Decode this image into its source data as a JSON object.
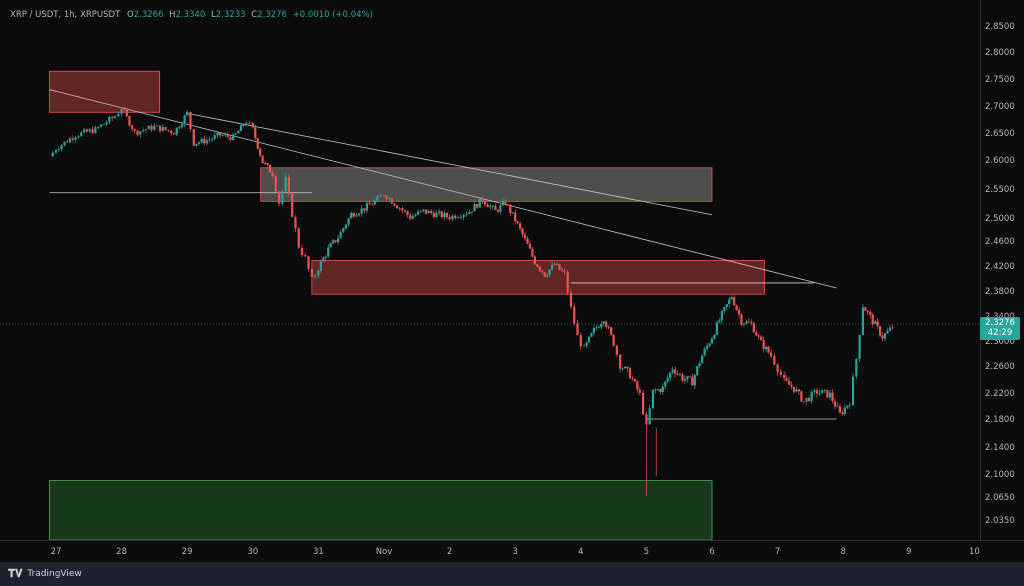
{
  "header": {
    "symbol": "XRP / USDT, 1h, XRPUSDT",
    "o_label": "O",
    "o_value": "2.3266",
    "h_label": "H",
    "h_value": "2.3340",
    "l_label": "L",
    "l_value": "2.3233",
    "c_label": "C",
    "c_value": "2.3276",
    "change": "+0.0010 (+0.04%)"
  },
  "last_price": {
    "price": "2.3276",
    "countdown": "42:29"
  },
  "footer": {
    "brand": "TradingView"
  },
  "colors": {
    "up": "#26a69a",
    "down": "#ef5350",
    "resistance_zone": "#ef5350",
    "support_zone": "#2e7d32",
    "background": "#0b0b0c"
  },
  "chart_data": {
    "type": "candlestick",
    "title": "",
    "x_tick_labels": [
      "27",
      "28",
      "29",
      "30",
      "31",
      "Nov",
      "2",
      "3",
      "4",
      "5",
      "6",
      "7",
      "8",
      "9",
      "10"
    ],
    "y_tick_labels": [
      "2.8500",
      "2.8000",
      "2.7500",
      "2.7000",
      "2.6500",
      "2.6000",
      "2.5500",
      "2.5000",
      "2.4600",
      "2.4200",
      "2.3800",
      "2.3400",
      "2.3000",
      "2.2600",
      "2.2200",
      "2.1800",
      "2.1400",
      "2.1000",
      "2.0650",
      "2.0350"
    ],
    "y_scale": "log",
    "grid": false,
    "anchors": [
      [
        26.9,
        2.61
      ],
      [
        27.0,
        2.625
      ],
      [
        27.3,
        2.65
      ],
      [
        27.6,
        2.66
      ],
      [
        27.9,
        2.685
      ],
      [
        28.0,
        2.7
      ],
      [
        28.2,
        2.655
      ],
      [
        28.5,
        2.665
      ],
      [
        28.8,
        2.655
      ],
      [
        29.0,
        2.69
      ],
      [
        29.1,
        2.635
      ],
      [
        29.3,
        2.64
      ],
      [
        29.5,
        2.65
      ],
      [
        29.7,
        2.645
      ],
      [
        29.9,
        2.675
      ],
      [
        30.0,
        2.66
      ],
      [
        30.15,
        2.6
      ],
      [
        30.3,
        2.58
      ],
      [
        30.4,
        2.53
      ],
      [
        30.5,
        2.57
      ],
      [
        30.6,
        2.51
      ],
      [
        30.7,
        2.455
      ],
      [
        30.8,
        2.435
      ],
      [
        30.9,
        2.4
      ],
      [
        31.0,
        2.42
      ],
      [
        31.15,
        2.45
      ],
      [
        31.3,
        2.47
      ],
      [
        31.5,
        2.51
      ],
      [
        31.7,
        2.52
      ],
      [
        31.9,
        2.535
      ],
      [
        32.0,
        2.545
      ],
      [
        32.2,
        2.525
      ],
      [
        32.4,
        2.505
      ],
      [
        32.6,
        2.515
      ],
      [
        32.8,
        2.51
      ],
      [
        33.0,
        2.505
      ],
      [
        33.3,
        2.515
      ],
      [
        33.5,
        2.535
      ],
      [
        33.7,
        2.515
      ],
      [
        33.85,
        2.53
      ],
      [
        34.0,
        2.5
      ],
      [
        34.15,
        2.465
      ],
      [
        34.3,
        2.43
      ],
      [
        34.45,
        2.41
      ],
      [
        34.6,
        2.425
      ],
      [
        34.75,
        2.41
      ],
      [
        34.85,
        2.355
      ],
      [
        34.95,
        2.31
      ],
      [
        35.05,
        2.29
      ],
      [
        35.2,
        2.32
      ],
      [
        35.35,
        2.34
      ],
      [
        35.5,
        2.3
      ],
      [
        35.6,
        2.265
      ],
      [
        35.75,
        2.25
      ],
      [
        35.9,
        2.22
      ],
      [
        36.0,
        2.17
      ],
      [
        36.1,
        2.225
      ],
      [
        36.25,
        2.23
      ],
      [
        36.4,
        2.26
      ],
      [
        36.55,
        2.245
      ],
      [
        36.7,
        2.24
      ],
      [
        36.85,
        2.28
      ],
      [
        37.0,
        2.31
      ],
      [
        37.15,
        2.345
      ],
      [
        37.3,
        2.375
      ],
      [
        37.45,
        2.335
      ],
      [
        37.6,
        2.33
      ],
      [
        37.75,
        2.3
      ],
      [
        37.9,
        2.28
      ],
      [
        38.0,
        2.26
      ],
      [
        38.1,
        2.24
      ],
      [
        38.25,
        2.23
      ],
      [
        38.4,
        2.21
      ],
      [
        38.6,
        2.225
      ],
      [
        38.8,
        2.22
      ],
      [
        38.95,
        2.19
      ],
      [
        39.1,
        2.21
      ],
      [
        39.2,
        2.275
      ],
      [
        39.3,
        2.36
      ],
      [
        39.45,
        2.335
      ],
      [
        39.6,
        2.31
      ],
      [
        39.75,
        2.325
      ]
    ]
  },
  "annotations": {
    "zones": [
      {
        "kind": "resistance",
        "from": 26.9,
        "to": 28.58,
        "low": 2.692,
        "high": 2.768
      },
      {
        "kind": "neutral",
        "from": 30.12,
        "to": 37.0,
        "low": 2.532,
        "high": 2.59
      },
      {
        "kind": "resistance",
        "from": 30.9,
        "to": 37.8,
        "low": 2.378,
        "high": 2.432
      },
      {
        "kind": "support",
        "from": 26.9,
        "to": 37.0,
        "low": 1.99,
        "high": 2.093
      }
    ],
    "trendlines": [
      {
        "x1": 26.9,
        "y1": 2.734,
        "x2": 38.9,
        "y2": 2.388
      },
      {
        "x1": 29.0,
        "y1": 2.69,
        "x2": 37.0,
        "y2": 2.509
      }
    ],
    "horizontal_levels": [
      {
        "from": 26.9,
        "to": 30.9,
        "price": 2.547
      },
      {
        "from": 34.85,
        "to": 38.55,
        "price": 2.396
      },
      {
        "from": 36.0,
        "to": 38.9,
        "price": 2.183
      }
    ]
  }
}
